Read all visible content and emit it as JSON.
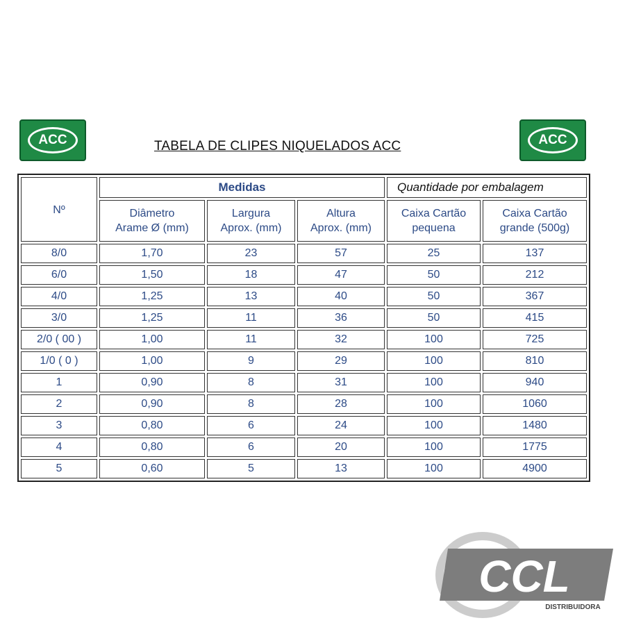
{
  "logos": [
    "ACC",
    "ACC"
  ],
  "title": "TABELA DE CLIPES NIQUELADOS ACC",
  "table": {
    "first_column": "Nº",
    "groups": [
      "Medidas",
      "Quantidade por embalagem"
    ],
    "columns": [
      [
        "Diâmetro",
        "Arame Ø (mm)"
      ],
      [
        "Largura",
        "Aprox. (mm)"
      ],
      [
        "Altura",
        "Aprox. (mm)"
      ],
      [
        "Caixa Cartão",
        "pequena"
      ],
      [
        "Caixa Cartão",
        "grande (500g)"
      ]
    ],
    "rows": [
      [
        "8/0",
        "1,70",
        "23",
        "57",
        "25",
        "137"
      ],
      [
        "6/0",
        "1,50",
        "18",
        "47",
        "50",
        "212"
      ],
      [
        "4/0",
        "1,25",
        "13",
        "40",
        "50",
        "367"
      ],
      [
        "3/0",
        "1,25",
        "11",
        "36",
        "50",
        "415"
      ],
      [
        "2/0 ( 00 )",
        "1,00",
        "11",
        "32",
        "100",
        "725"
      ],
      [
        "1/0 ( 0 )",
        "1,00",
        "9",
        "29",
        "100",
        "810"
      ],
      [
        "1",
        "0,90",
        "8",
        "31",
        "100",
        "940"
      ],
      [
        "2",
        "0,90",
        "8",
        "28",
        "100",
        "1060"
      ],
      [
        "3",
        "0,80",
        "6",
        "24",
        "100",
        "1480"
      ],
      [
        "4",
        "0,80",
        "6",
        "20",
        "100",
        "1775"
      ],
      [
        "5",
        "0,60",
        "5",
        "13",
        "100",
        "4900"
      ]
    ]
  },
  "watermark": {
    "brand": "CCL",
    "sub": "DISTRIBUIDORA"
  }
}
